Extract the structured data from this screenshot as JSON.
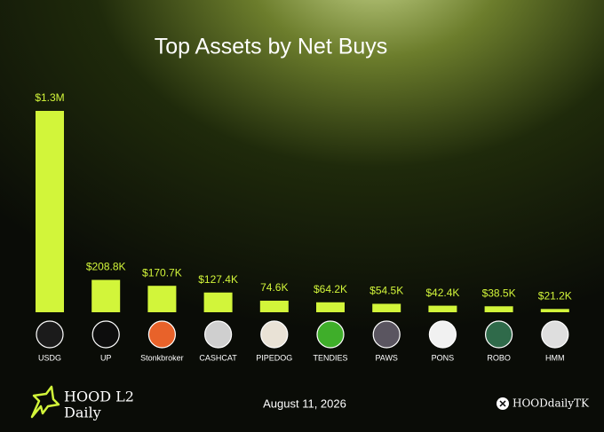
{
  "chart_data": {
    "type": "bar",
    "title": "Top Assets by Net Buys",
    "categories": [
      "USDG",
      "UP",
      "Stonkbroker",
      "CASHCAT",
      "PIPEDOG",
      "TENDIES",
      "PAWS",
      "PONS",
      "ROBO",
      "HMM"
    ],
    "values": [
      1300000,
      208800,
      170700,
      127400,
      74600,
      64200,
      54500,
      42400,
      38500,
      21200
    ],
    "value_labels": [
      "$1.3M",
      "$208.8K",
      "$170.7K",
      "$127.4K",
      "74.6K",
      "$64.2K",
      "$54.5K",
      "$42.4K",
      "$38.5K",
      "$21.2K"
    ],
    "color": "#d2f53a"
  },
  "footer": {
    "brand": "HOOD L2",
    "brand_sub": "Daily",
    "date": "August 11, 2026",
    "handle": "HOODdailyTK"
  }
}
